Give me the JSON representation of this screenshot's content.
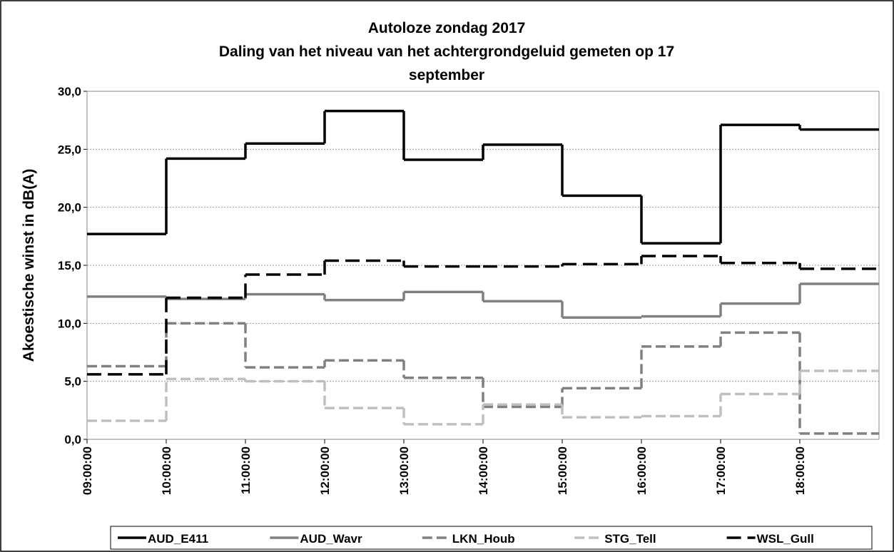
{
  "chart_data": {
    "type": "step",
    "title": "Autoloze zondag 2017",
    "subtitle": [
      "Daling van het niveau van het achtergrondgeluid gemeten op 17",
      "september"
    ],
    "y_label": "Akoestische winst in dB(A)",
    "categories": [
      "09:00:00",
      "10:00:00",
      "11:00:00",
      "12:00:00",
      "13:00:00",
      "14:00:00",
      "15:00:00",
      "16:00:00",
      "17:00:00",
      "18:00:00"
    ],
    "series": [
      {
        "name": "AUD_E411",
        "color": "#000000",
        "line_style": "solid",
        "values": [
          17.7,
          24.2,
          25.5,
          28.3,
          24.1,
          25.4,
          21.0,
          16.9,
          27.1,
          26.7
        ]
      },
      {
        "name": "AUD_Wavr",
        "color": "#808080",
        "line_style": "solid",
        "values": [
          12.3,
          12.1,
          12.5,
          12.0,
          12.7,
          11.9,
          10.5,
          10.6,
          11.7,
          13.4
        ]
      },
      {
        "name": "LKN_Houb",
        "color": "#808080",
        "line_style": "dashed",
        "values": [
          6.3,
          10.0,
          6.2,
          6.8,
          5.3,
          2.8,
          4.4,
          8.0,
          9.2,
          0.5
        ]
      },
      {
        "name": "STG_Tell",
        "color": "#bfbfbf",
        "line_style": "dashed",
        "values": [
          1.6,
          5.2,
          5.0,
          2.7,
          1.3,
          3.0,
          1.9,
          2.0,
          3.9,
          5.9
        ]
      },
      {
        "name": "WSL_Gull",
        "color": "#000000",
        "line_style": "long-dashed",
        "values": [
          5.6,
          12.2,
          14.2,
          15.4,
          14.9,
          14.9,
          15.1,
          15.8,
          15.2,
          14.7
        ]
      }
    ],
    "ylim": [
      0,
      30
    ],
    "yticks": [
      {
        "value": 0,
        "label": "0,0"
      },
      {
        "value": 5,
        "label": "5,0"
      },
      {
        "value": 10,
        "label": "10,0"
      },
      {
        "value": 15,
        "label": "15,0"
      },
      {
        "value": 20,
        "label": "20,0"
      },
      {
        "value": 25,
        "label": "25,0"
      },
      {
        "value": 30,
        "label": "30,0"
      }
    ],
    "grid": true,
    "legend": "bottom"
  }
}
